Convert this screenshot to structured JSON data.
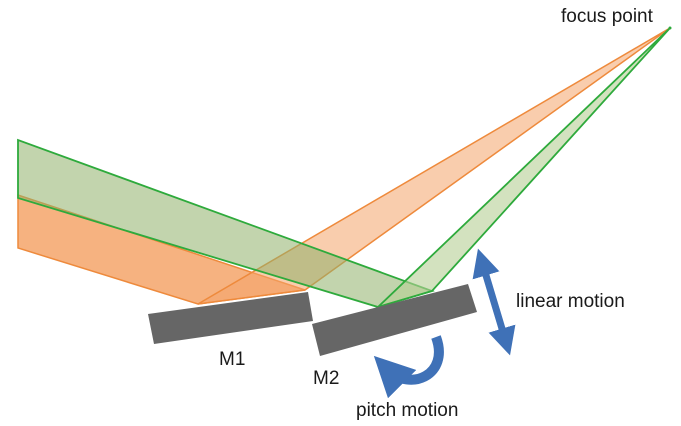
{
  "labels": {
    "focus_point": "focus point",
    "mirror1": "M1",
    "mirror2": "M2",
    "linear_motion": "linear motion",
    "pitch_motion": "pitch motion"
  },
  "colors": {
    "orange_beam_fill": "#f4a46a",
    "orange_beam_stroke": "#ee8a3c",
    "green_beam_fill": "#8fb06a",
    "green_beam_stroke": "#2eaa3c",
    "mirror": "#666666",
    "arrow": "#3f71b7"
  }
}
